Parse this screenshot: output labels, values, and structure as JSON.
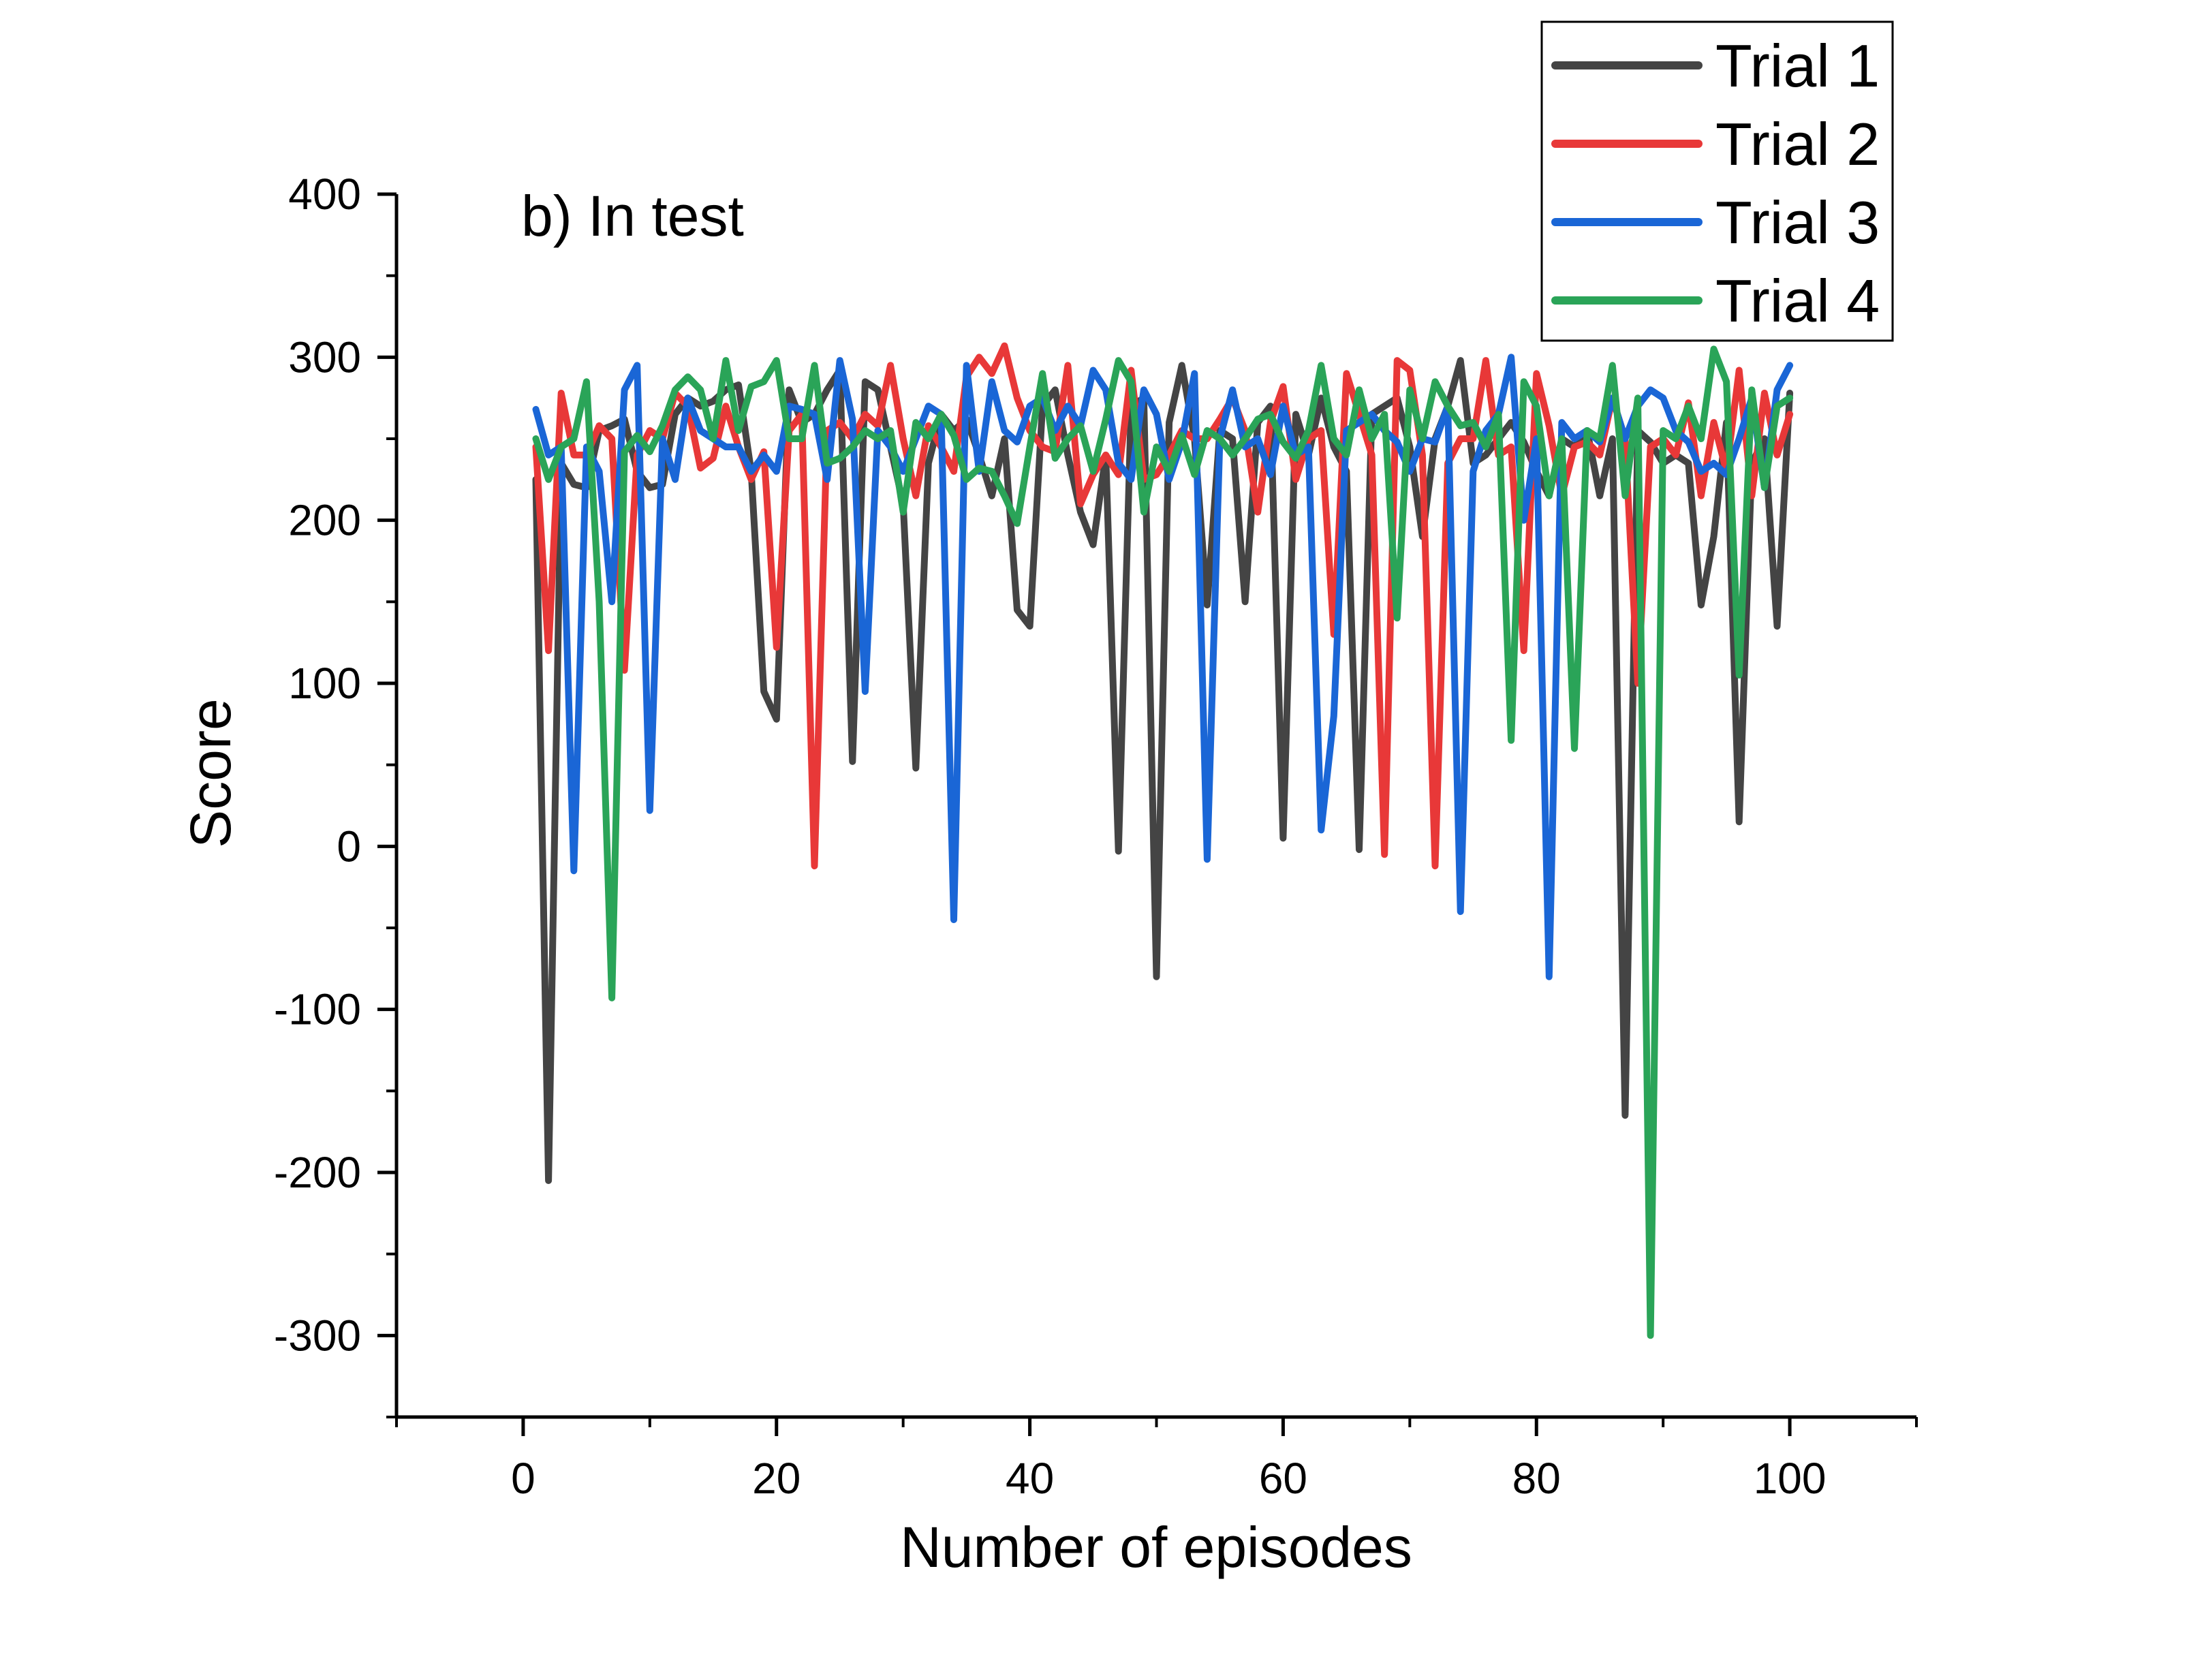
{
  "chart_data": {
    "type": "line",
    "annotation": "b) In test",
    "xlabel": "Number of episodes",
    "ylabel": "Score",
    "xlim": [
      -10,
      110
    ],
    "ylim": [
      -350,
      400
    ],
    "xticks": [
      0,
      20,
      40,
      60,
      80,
      100
    ],
    "yticks": [
      -300,
      -200,
      -100,
      0,
      100,
      200,
      300,
      400
    ],
    "xtick_labels": [
      "0",
      "20",
      "40",
      "60",
      "80",
      "100"
    ],
    "ytick_labels": [
      "-300",
      "-200",
      "-100",
      "0",
      "100",
      "200",
      "300",
      "400"
    ],
    "grid": false,
    "legend_position": "top-right",
    "x": [
      1,
      2,
      3,
      4,
      5,
      6,
      7,
      8,
      9,
      10,
      11,
      12,
      13,
      14,
      15,
      16,
      17,
      18,
      19,
      20,
      21,
      22,
      23,
      24,
      25,
      26,
      27,
      28,
      29,
      30,
      31,
      32,
      33,
      34,
      35,
      36,
      37,
      38,
      39,
      40,
      41,
      42,
      43,
      44,
      45,
      46,
      47,
      48,
      49,
      50,
      51,
      52,
      53,
      54,
      55,
      56,
      57,
      58,
      59,
      60,
      61,
      62,
      63,
      64,
      65,
      66,
      67,
      68,
      69,
      70,
      71,
      72,
      73,
      74,
      75,
      76,
      77,
      78,
      79,
      80,
      81,
      82,
      83,
      84,
      85,
      86,
      87,
      88,
      89,
      90,
      91,
      92,
      93,
      94,
      95,
      96,
      97,
      98,
      99,
      100
    ],
    "series": [
      {
        "name": "Trial 1",
        "color": "#444444",
        "values": [
          225,
          -205,
          235,
          222,
          220,
          255,
          258,
          262,
          230,
          220,
          222,
          265,
          275,
          270,
          273,
          280,
          283,
          230,
          95,
          78,
          280,
          260,
          265,
          280,
          292,
          52,
          285,
          280,
          245,
          210,
          48,
          235,
          265,
          255,
          262,
          240,
          215,
          250,
          145,
          135,
          270,
          280,
          240,
          205,
          185,
          240,
          -3,
          270,
          275,
          -80,
          260,
          295,
          250,
          148,
          255,
          250,
          150,
          260,
          270,
          5,
          265,
          240,
          275,
          245,
          230,
          -2,
          265,
          270,
          275,
          245,
          190,
          250,
          270,
          298,
          235,
          240,
          250,
          260,
          248,
          230,
          215,
          250,
          245,
          255,
          215,
          250,
          -165,
          255,
          248,
          235,
          240,
          235,
          148,
          190,
          260,
          15,
          235,
          250,
          135,
          278
        ]
      },
      {
        "name": "Trial 2",
        "color": "#e83838",
        "values": [
          245,
          120,
          278,
          240,
          240,
          258,
          250,
          108,
          240,
          255,
          250,
          278,
          270,
          232,
          238,
          270,
          245,
          225,
          242,
          122,
          255,
          265,
          -12,
          255,
          260,
          250,
          265,
          258,
          295,
          250,
          215,
          258,
          245,
          230,
          288,
          300,
          290,
          307,
          275,
          255,
          245,
          242,
          295,
          210,
          228,
          240,
          228,
          292,
          225,
          228,
          240,
          255,
          250,
          250,
          262,
          275,
          255,
          205,
          260,
          282,
          225,
          250,
          255,
          130,
          290,
          265,
          240,
          -5,
          298,
          292,
          240,
          -12,
          235,
          250,
          250,
          298,
          240,
          245,
          120,
          290,
          258,
          215,
          245,
          248,
          240,
          275,
          250,
          100,
          245,
          250,
          240,
          272,
          215,
          260,
          230,
          292,
          215,
          278,
          240,
          265
        ]
      },
      {
        "name": "Trial 3",
        "color": "#1a66d6",
        "values": [
          268,
          240,
          245,
          -15,
          245,
          230,
          150,
          280,
          295,
          22,
          250,
          225,
          275,
          255,
          250,
          245,
          245,
          230,
          240,
          230,
          270,
          268,
          265,
          225,
          298,
          262,
          95,
          255,
          245,
          230,
          250,
          270,
          265,
          -45,
          295,
          230,
          285,
          255,
          248,
          270,
          275,
          255,
          270,
          258,
          292,
          280,
          235,
          225,
          280,
          265,
          225,
          248,
          290,
          -8,
          250,
          280,
          245,
          250,
          228,
          270,
          240,
          245,
          10,
          80,
          255,
          260,
          265,
          255,
          248,
          230,
          250,
          248,
          270,
          -40,
          230,
          255,
          265,
          300,
          200,
          250,
          -80,
          260,
          250,
          255,
          248,
          275,
          250,
          270,
          280,
          275,
          255,
          248,
          230,
          235,
          228,
          250,
          275,
          220,
          280,
          295
        ]
      },
      {
        "name": "Trial 4",
        "color": "#2aa458",
        "values": [
          250,
          225,
          245,
          250,
          285,
          150,
          -93,
          242,
          252,
          242,
          258,
          280,
          288,
          280,
          250,
          298,
          255,
          282,
          285,
          298,
          250,
          250,
          295,
          235,
          238,
          245,
          255,
          250,
          255,
          205,
          260,
          250,
          265,
          252,
          225,
          232,
          230,
          215,
          198,
          245,
          290,
          238,
          250,
          258,
          230,
          262,
          298,
          285,
          205,
          245,
          230,
          252,
          228,
          255,
          250,
          240,
          250,
          262,
          265,
          248,
          238,
          255,
          295,
          250,
          240,
          280,
          250,
          265,
          140,
          280,
          250,
          285,
          270,
          258,
          260,
          245,
          265,
          65,
          285,
          270,
          215,
          250,
          60,
          255,
          250,
          295,
          215,
          275,
          -300,
          255,
          250,
          270,
          250,
          305,
          285,
          105,
          280,
          220,
          270,
          275
        ]
      }
    ]
  }
}
